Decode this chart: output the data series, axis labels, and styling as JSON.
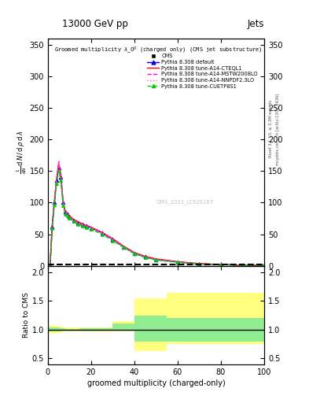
{
  "title_top": "13000 GeV pp",
  "title_right": "Jets",
  "plot_title": "Groomed multiplicity $\\lambda\\_0^0$ (charged only) (CMS jet substructure)",
  "xlabel": "groomed multiplicity (charged-only)",
  "ylabel_ratio": "Ratio to CMS",
  "right_label1": "Rivet 3.1.10, ≥ 3.3M events",
  "right_label2": "mcplots.cern.ch [arXiv:1306.3436]",
  "watermark": "CMS_2021_I1920187",
  "main_x": [
    1,
    2,
    3,
    4,
    5,
    6,
    7,
    8,
    9,
    10,
    12,
    14,
    16,
    18,
    20,
    25,
    30,
    35,
    40,
    45,
    50,
    60,
    70,
    80,
    90,
    100
  ],
  "default_y": [
    0,
    62,
    100,
    135,
    155,
    140,
    100,
    85,
    82,
    78,
    72,
    68,
    65,
    63,
    60,
    52,
    42,
    30,
    20,
    14,
    10,
    6,
    3,
    2,
    1,
    0.5
  ],
  "a14cteql1_y": [
    0,
    65,
    102,
    138,
    160,
    145,
    102,
    87,
    83,
    79,
    73,
    70,
    66,
    64,
    61,
    53,
    43,
    31,
    21,
    15,
    11,
    6.5,
    3.5,
    2,
    1,
    0.5
  ],
  "mstw2008_y": [
    0,
    63,
    100,
    136,
    165,
    143,
    101,
    86,
    82,
    78,
    72,
    68,
    65,
    63,
    60,
    52,
    42,
    30,
    20,
    14,
    10,
    6,
    3,
    2,
    1,
    0.5
  ],
  "nnpdf23_y": [
    0,
    63,
    101,
    137,
    163,
    143,
    102,
    86,
    82,
    78,
    72,
    68,
    65,
    63,
    60,
    52,
    42,
    30,
    20,
    14,
    10,
    6,
    3,
    2,
    1,
    0.5
  ],
  "cuetp8s1_y": [
    0,
    60,
    97,
    130,
    150,
    135,
    96,
    82,
    79,
    75,
    70,
    66,
    63,
    61,
    58,
    50,
    40,
    29,
    19,
    13,
    9,
    5.5,
    2.8,
    1.8,
    0.9,
    0.4
  ],
  "ylim_main": [
    0,
    360
  ],
  "yticks_main": [
    0,
    50,
    100,
    150,
    200,
    250,
    300,
    350
  ],
  "ylim_ratio": [
    0.38,
    2.12
  ],
  "ratio_yticks": [
    0.5,
    1.0,
    1.5,
    2.0
  ],
  "yellow_edges": [
    0,
    1,
    2,
    3,
    4,
    5,
    6,
    7,
    8,
    9,
    10,
    15,
    20,
    30,
    40,
    50,
    55,
    100
  ],
  "yellow_lo": [
    0.94,
    0.92,
    0.92,
    0.93,
    0.94,
    0.94,
    0.95,
    0.96,
    0.97,
    0.97,
    0.97,
    0.96,
    0.96,
    0.96,
    0.62,
    0.62,
    0.75,
    0.75
  ],
  "yellow_hi": [
    1.06,
    1.08,
    1.08,
    1.07,
    1.06,
    1.06,
    1.05,
    1.04,
    1.03,
    1.03,
    1.03,
    1.04,
    1.04,
    1.15,
    1.55,
    1.55,
    1.65,
    1.65
  ],
  "green_edges": [
    0,
    1,
    2,
    3,
    4,
    5,
    6,
    7,
    8,
    9,
    10,
    15,
    20,
    30,
    40,
    50,
    55,
    100
  ],
  "green_lo": [
    0.97,
    0.96,
    0.96,
    0.97,
    0.97,
    0.97,
    0.98,
    0.98,
    0.99,
    0.99,
    0.99,
    0.98,
    0.98,
    0.98,
    0.78,
    0.78,
    0.78,
    0.78
  ],
  "green_hi": [
    1.03,
    1.04,
    1.04,
    1.03,
    1.03,
    1.03,
    1.02,
    1.02,
    1.01,
    1.01,
    1.01,
    1.02,
    1.02,
    1.1,
    1.25,
    1.25,
    1.2,
    1.2
  ],
  "color_default": "#0000FF",
  "color_a14cteql1": "#FF0000",
  "color_mstw2008": "#FF00FF",
  "color_nnpdf23": "#FF69B4",
  "color_cuetp8s1": "#00CC00",
  "color_yellow": "#FFFF80",
  "color_green": "#90EE90",
  "bg_color": "#FFFFFF"
}
